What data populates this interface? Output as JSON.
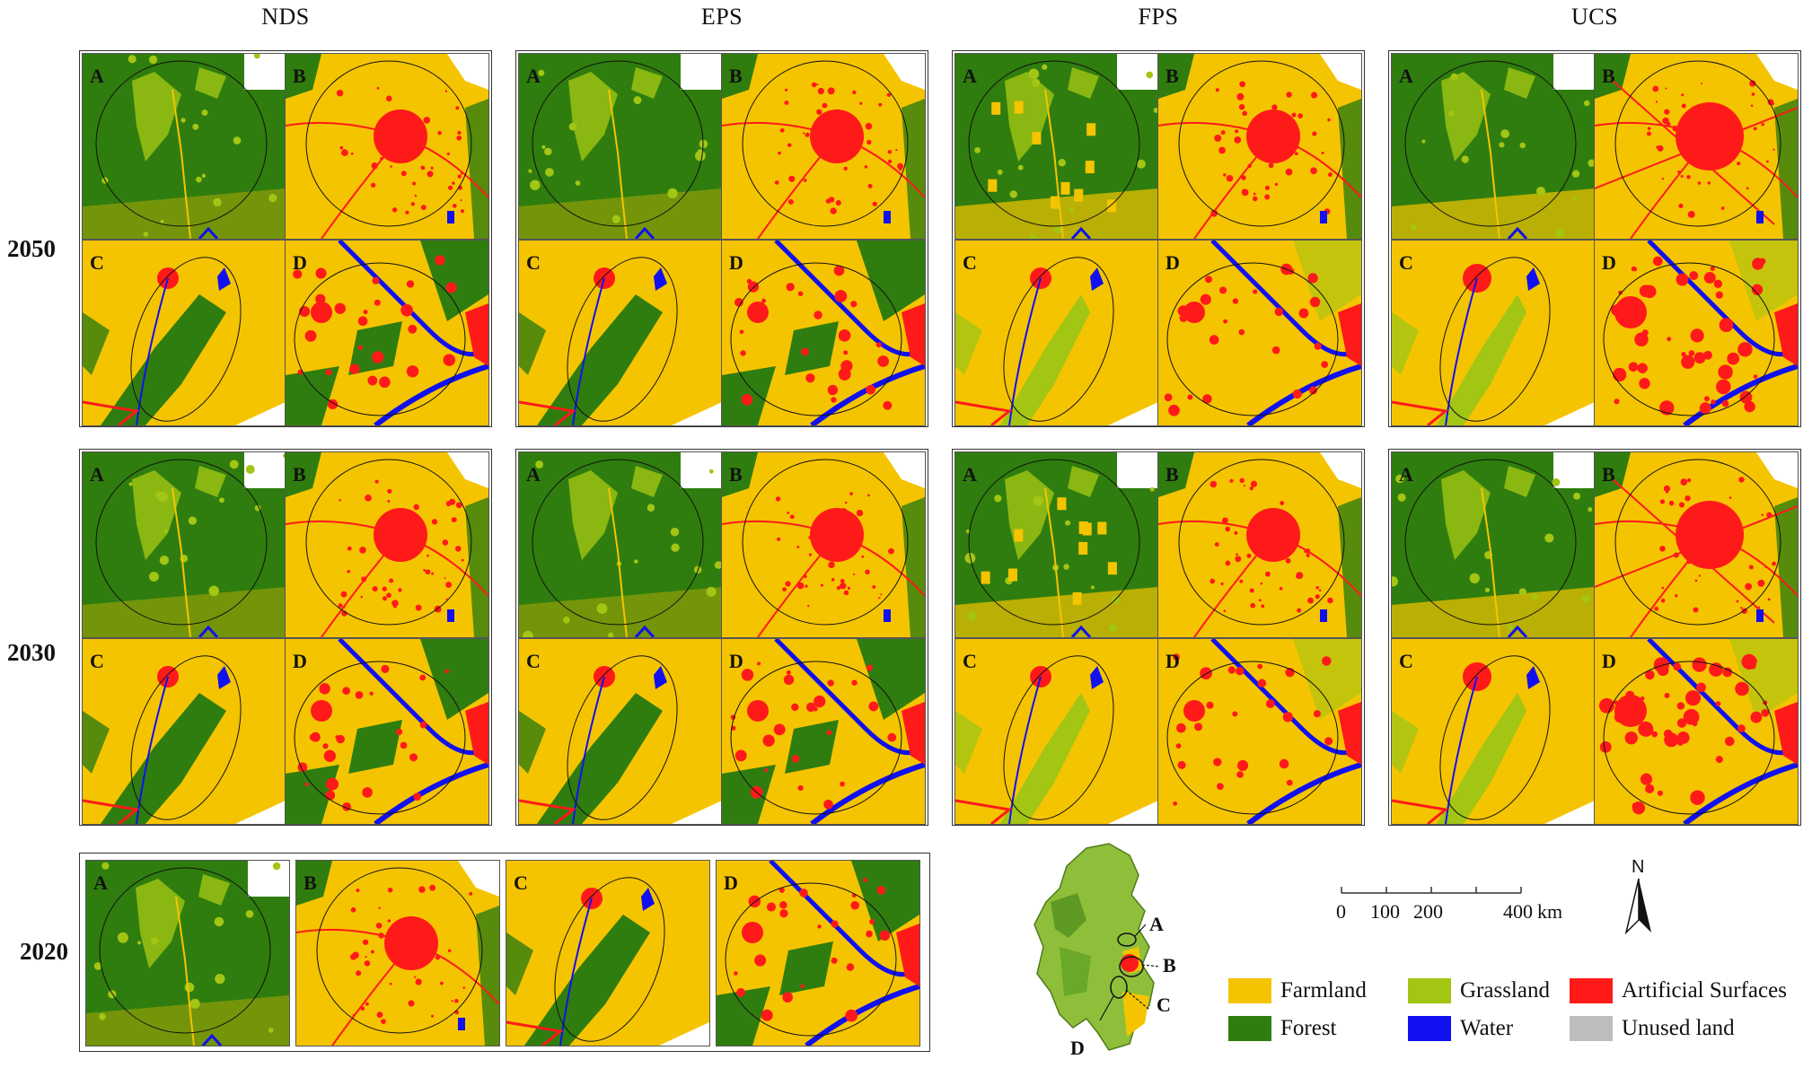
{
  "scenarios": [
    "NDS",
    "EPS",
    "FPS",
    "UCS"
  ],
  "years": [
    "2050",
    "2030",
    "2020"
  ],
  "panel_letters": [
    "A",
    "B",
    "C",
    "D"
  ],
  "colors": {
    "farmland": "#f5c400",
    "forest": "#2f7d0e",
    "grassland": "#a3c514",
    "water": "#1010f0",
    "artificial": "#ff1a1a",
    "unused": "#bdbdbd"
  },
  "legend": [
    {
      "label": "Farmland",
      "color": "#f5c400"
    },
    {
      "label": "Grassland",
      "color": "#a3c514"
    },
    {
      "label": "Artificial Surfaces",
      "color": "#ff1a1a"
    },
    {
      "label": "Forest",
      "color": "#2f7d0e"
    },
    {
      "label": "Water",
      "color": "#1010f0"
    },
    {
      "label": "Unused land",
      "color": "#bdbdbd"
    }
  ],
  "scale": {
    "labels": [
      "0",
      "100",
      "200",
      "400"
    ],
    "unit": "km"
  },
  "north_label": "N",
  "inset_letters": [
    "A",
    "B",
    "C",
    "D"
  ]
}
